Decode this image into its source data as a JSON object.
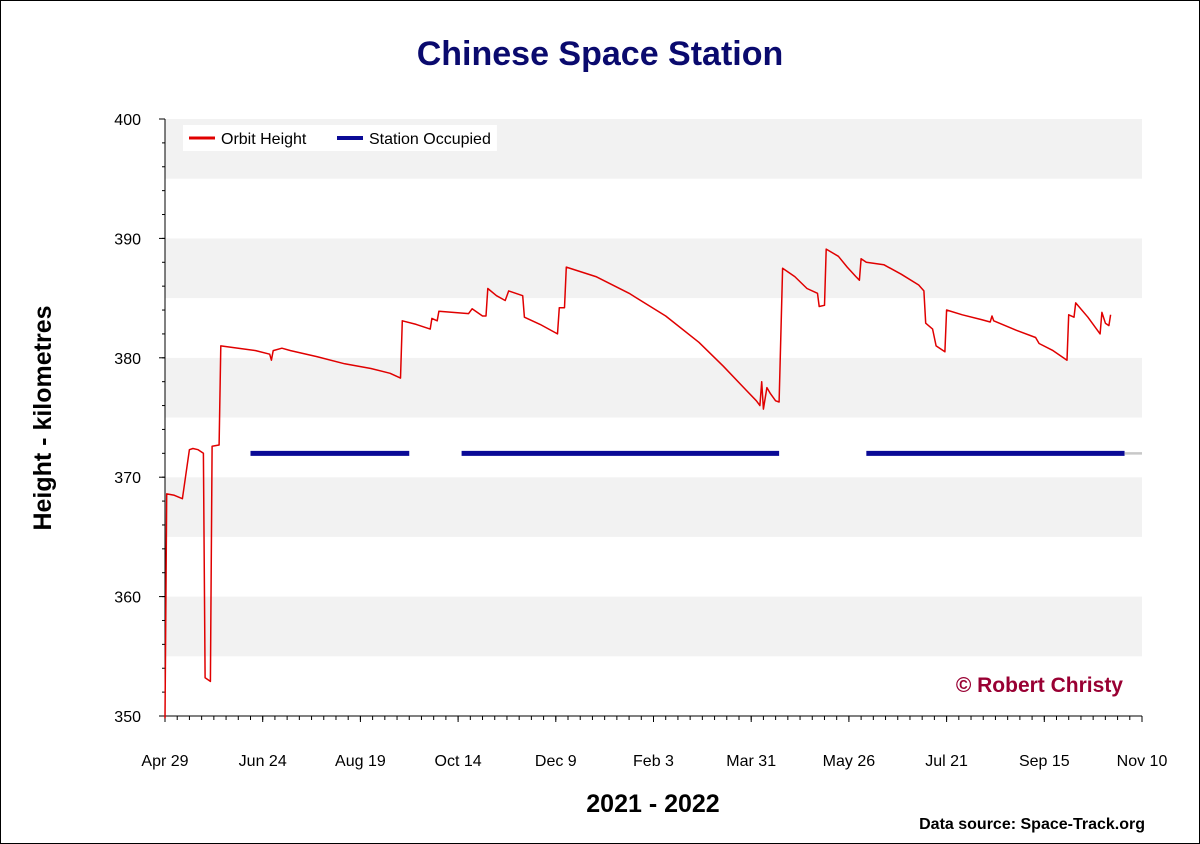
{
  "chart_data": {
    "type": "line",
    "title": "Chinese Space Station",
    "xlabel": "2021 - 2022",
    "ylabel": "Height - kilometres",
    "ylim": [
      350,
      400
    ],
    "yticks": [
      350,
      360,
      370,
      380,
      390,
      400
    ],
    "xlim": [
      "2021-04-29",
      "2022-11-10"
    ],
    "xticks": [
      {
        "date": "2021-04-29",
        "label": "Apr 29"
      },
      {
        "date": "2021-06-24",
        "label": "Jun 24"
      },
      {
        "date": "2021-08-19",
        "label": "Aug 19"
      },
      {
        "date": "2021-10-14",
        "label": "Oct 14"
      },
      {
        "date": "2021-12-09",
        "label": "Dec 9"
      },
      {
        "date": "2022-02-03",
        "label": "Feb 3"
      },
      {
        "date": "2022-03-31",
        "label": "Mar 31"
      },
      {
        "date": "2022-05-26",
        "label": "May 26"
      },
      {
        "date": "2022-07-21",
        "label": "Jul 21"
      },
      {
        "date": "2022-09-15",
        "label": "Sep 15"
      },
      {
        "date": "2022-11-10",
        "label": "Nov 10"
      }
    ],
    "grid": "alternating horizontal bands every 5 km",
    "legend_position": "top-left",
    "series": [
      {
        "name": "Orbit Height",
        "color": "#e00000",
        "points": [
          [
            "2021-04-29",
            349.8
          ],
          [
            "2021-04-30",
            368.6
          ],
          [
            "2021-05-04",
            368.5
          ],
          [
            "2021-05-09",
            368.2
          ],
          [
            "2021-05-13",
            372.3
          ],
          [
            "2021-05-15",
            372.4
          ],
          [
            "2021-05-18",
            372.3
          ],
          [
            "2021-05-21",
            372.0
          ],
          [
            "2021-05-22",
            353.2
          ],
          [
            "2021-05-25",
            352.9
          ],
          [
            "2021-05-26",
            372.6
          ],
          [
            "2021-05-30",
            372.7
          ],
          [
            "2021-05-31",
            381.0
          ],
          [
            "2021-06-10",
            380.8
          ],
          [
            "2021-06-20",
            380.6
          ],
          [
            "2021-06-28",
            380.3
          ],
          [
            "2021-06-29",
            379.8
          ],
          [
            "2021-06-30",
            380.6
          ],
          [
            "2021-07-05",
            380.8
          ],
          [
            "2021-07-10",
            380.6
          ],
          [
            "2021-07-25",
            380.1
          ],
          [
            "2021-08-10",
            379.5
          ],
          [
            "2021-08-25",
            379.1
          ],
          [
            "2021-09-05",
            378.7
          ],
          [
            "2021-09-11",
            378.3
          ],
          [
            "2021-09-12",
            383.1
          ],
          [
            "2021-09-20",
            382.8
          ],
          [
            "2021-09-28",
            382.4
          ],
          [
            "2021-09-29",
            383.3
          ],
          [
            "2021-10-02",
            383.1
          ],
          [
            "2021-10-03",
            383.9
          ],
          [
            "2021-10-20",
            383.7
          ],
          [
            "2021-10-22",
            384.1
          ],
          [
            "2021-10-28",
            383.5
          ],
          [
            "2021-10-30",
            383.5
          ],
          [
            "2021-10-31",
            385.8
          ],
          [
            "2021-11-05",
            385.2
          ],
          [
            "2021-11-10",
            384.8
          ],
          [
            "2021-11-12",
            385.6
          ],
          [
            "2021-11-20",
            385.2
          ],
          [
            "2021-11-21",
            383.4
          ],
          [
            "2021-11-30",
            382.8
          ],
          [
            "2021-12-05",
            382.4
          ],
          [
            "2021-12-10",
            382.0
          ],
          [
            "2021-12-11",
            384.2
          ],
          [
            "2021-12-14",
            384.2
          ],
          [
            "2021-12-15",
            387.6
          ],
          [
            "2022-01-01",
            386.8
          ],
          [
            "2022-01-20",
            385.4
          ],
          [
            "2022-02-10",
            383.5
          ],
          [
            "2022-03-01",
            381.3
          ],
          [
            "2022-03-15",
            379.3
          ],
          [
            "2022-03-28",
            377.3
          ],
          [
            "2022-04-03",
            376.4
          ],
          [
            "2022-04-05",
            376.0
          ],
          [
            "2022-04-06",
            378.0
          ],
          [
            "2022-04-07",
            375.7
          ],
          [
            "2022-04-09",
            377.5
          ],
          [
            "2022-04-11",
            377.0
          ],
          [
            "2022-04-14",
            376.4
          ],
          [
            "2022-04-16",
            376.3
          ],
          [
            "2022-04-18",
            387.5
          ],
          [
            "2022-04-25",
            386.8
          ],
          [
            "2022-05-02",
            385.8
          ],
          [
            "2022-05-08",
            385.4
          ],
          [
            "2022-05-09",
            384.3
          ],
          [
            "2022-05-12",
            384.4
          ],
          [
            "2022-05-13",
            389.1
          ],
          [
            "2022-05-20",
            388.5
          ],
          [
            "2022-05-25",
            387.6
          ],
          [
            "2022-05-30",
            386.8
          ],
          [
            "2022-06-01",
            386.5
          ],
          [
            "2022-06-02",
            388.3
          ],
          [
            "2022-06-05",
            388.0
          ],
          [
            "2022-06-15",
            387.8
          ],
          [
            "2022-06-25",
            387.0
          ],
          [
            "2022-07-05",
            386.1
          ],
          [
            "2022-07-08",
            385.6
          ],
          [
            "2022-07-09",
            382.9
          ],
          [
            "2022-07-13",
            382.4
          ],
          [
            "2022-07-15",
            381.0
          ],
          [
            "2022-07-20",
            380.5
          ],
          [
            "2022-07-21",
            384.0
          ],
          [
            "2022-07-30",
            383.6
          ],
          [
            "2022-08-10",
            383.2
          ],
          [
            "2022-08-15",
            383.0
          ],
          [
            "2022-08-16",
            383.5
          ],
          [
            "2022-08-17",
            383.1
          ],
          [
            "2022-08-30",
            382.3
          ],
          [
            "2022-09-10",
            381.7
          ],
          [
            "2022-09-12",
            381.2
          ],
          [
            "2022-09-20",
            380.6
          ],
          [
            "2022-09-28",
            379.8
          ],
          [
            "2022-09-29",
            383.6
          ],
          [
            "2022-10-02",
            383.4
          ],
          [
            "2022-10-03",
            384.6
          ],
          [
            "2022-10-10",
            383.4
          ],
          [
            "2022-10-17",
            382.0
          ],
          [
            "2022-10-18",
            383.8
          ],
          [
            "2022-10-20",
            382.9
          ],
          [
            "2022-10-22",
            382.7
          ],
          [
            "2022-10-23",
            383.6
          ]
        ]
      },
      {
        "name": "Station Occupied",
        "color": "#0a0a96",
        "value": 372,
        "segments": [
          [
            "2021-06-17",
            "2021-09-16"
          ],
          [
            "2021-10-16",
            "2022-04-16"
          ],
          [
            "2022-06-05",
            "2022-10-31"
          ]
        ],
        "continuation": {
          "color": "#c8c8c8",
          "range": [
            "2022-10-31",
            "2022-11-10"
          ]
        }
      }
    ]
  },
  "credit": "© Robert Christy",
  "data_source": "Data source: Space-Track.org"
}
